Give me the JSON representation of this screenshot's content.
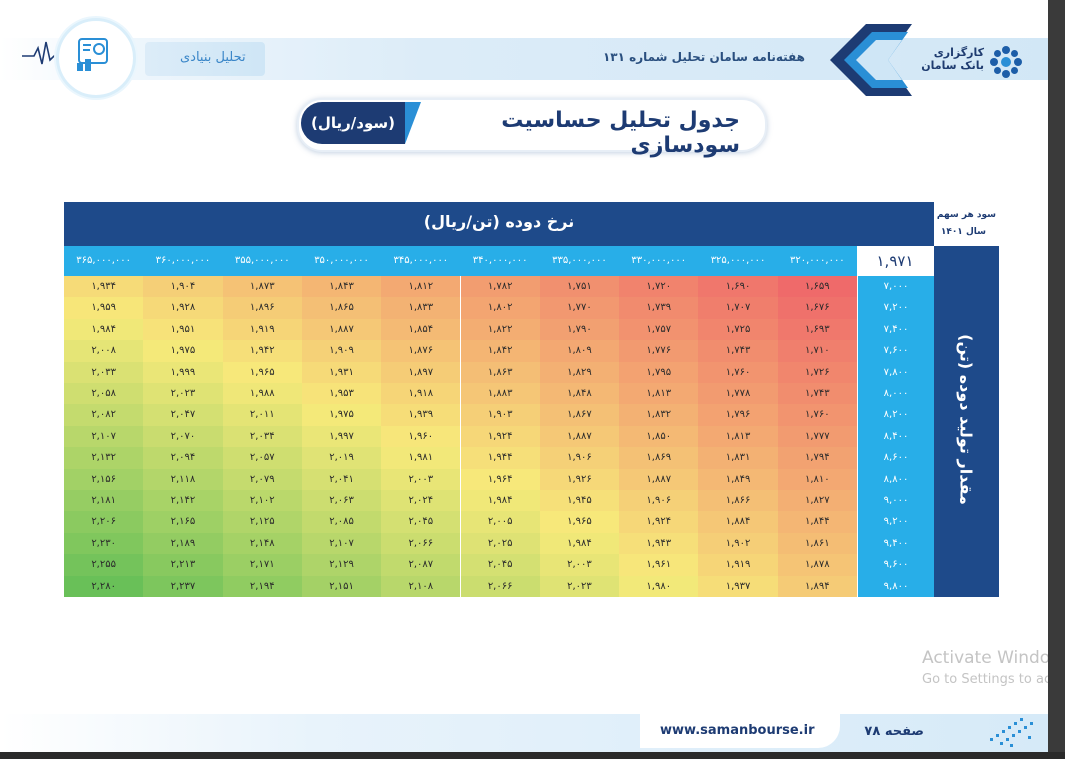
{
  "header": {
    "section_label": "تحلیل بنیادی",
    "weekly_title": "هفته‌نامه سامان تحلیل شماره ۱۳۱",
    "brand_line1": "کارگزاری",
    "brand_line2": "بانک سامان"
  },
  "title": {
    "main": "جدول تحلیل حساسیت سودسازی",
    "unit": "(سود/ریال)"
  },
  "table": {
    "corner_line1": "سود هر سهم",
    "corner_line2": "سال ۱۴۰۱",
    "column_header": "نرخ دوده (تن/ریال)",
    "row_header": "مقدار تولید دوده (تن)",
    "base_eps": "۱,۹۷۱",
    "prices": [
      "۳۲۰,۰۰۰,۰۰۰",
      "۳۲۵,۰۰۰,۰۰۰",
      "۳۳۰,۰۰۰,۰۰۰",
      "۳۳۵,۰۰۰,۰۰۰",
      "۳۴۰,۰۰۰,۰۰۰",
      "۳۴۵,۰۰۰,۰۰۰",
      "۳۵۰,۰۰۰,۰۰۰",
      "۳۵۵,۰۰۰,۰۰۰",
      "۳۶۰,۰۰۰,۰۰۰",
      "۳۶۵,۰۰۰,۰۰۰"
    ],
    "production": [
      "۷,۰۰۰",
      "۷,۲۰۰",
      "۷,۴۰۰",
      "۷,۶۰۰",
      "۷,۸۰۰",
      "۸,۰۰۰",
      "۸,۲۰۰",
      "۸,۴۰۰",
      "۸,۶۰۰",
      "۸,۸۰۰",
      "۹,۰۰۰",
      "۹,۲۰۰",
      "۹,۴۰۰",
      "۹,۶۰۰",
      "۹,۸۰۰"
    ],
    "rows": [
      [
        "۱,۶۵۹",
        "۱,۶۹۰",
        "۱,۷۲۰",
        "۱,۷۵۱",
        "۱,۷۸۲",
        "۱,۸۱۲",
        "۱,۸۴۳",
        "۱,۸۷۳",
        "۱,۹۰۴",
        "۱,۹۳۴"
      ],
      [
        "۱,۶۷۶",
        "۱,۷۰۷",
        "۱,۷۳۹",
        "۱,۷۷۰",
        "۱,۸۰۲",
        "۱,۸۳۳",
        "۱,۸۶۵",
        "۱,۸۹۶",
        "۱,۹۲۸",
        "۱,۹۵۹"
      ],
      [
        "۱,۶۹۳",
        "۱,۷۲۵",
        "۱,۷۵۷",
        "۱,۷۹۰",
        "۱,۸۲۲",
        "۱,۸۵۴",
        "۱,۸۸۷",
        "۱,۹۱۹",
        "۱,۹۵۱",
        "۱,۹۸۴"
      ],
      [
        "۱,۷۱۰",
        "۱,۷۴۳",
        "۱,۷۷۶",
        "۱,۸۰۹",
        "۱,۸۴۲",
        "۱,۸۷۶",
        "۱,۹۰۹",
        "۱,۹۴۲",
        "۱,۹۷۵",
        "۲,۰۰۸"
      ],
      [
        "۱,۷۲۶",
        "۱,۷۶۰",
        "۱,۷۹۵",
        "۱,۸۲۹",
        "۱,۸۶۳",
        "۱,۸۹۷",
        "۱,۹۳۱",
        "۱,۹۶۵",
        "۱,۹۹۹",
        "۲,۰۳۳"
      ],
      [
        "۱,۷۴۳",
        "۱,۷۷۸",
        "۱,۸۱۳",
        "۱,۸۴۸",
        "۱,۸۸۳",
        "۱,۹۱۸",
        "۱,۹۵۳",
        "۱,۹۸۸",
        "۲,۰۲۳",
        "۲,۰۵۸"
      ],
      [
        "۱,۷۶۰",
        "۱,۷۹۶",
        "۱,۸۳۲",
        "۱,۸۶۷",
        "۱,۹۰۳",
        "۱,۹۳۹",
        "۱,۹۷۵",
        "۲,۰۱۱",
        "۲,۰۴۷",
        "۲,۰۸۲"
      ],
      [
        "۱,۷۷۷",
        "۱,۸۱۳",
        "۱,۸۵۰",
        "۱,۸۸۷",
        "۱,۹۲۴",
        "۱,۹۶۰",
        "۱,۹۹۷",
        "۲,۰۳۴",
        "۲,۰۷۰",
        "۲,۱۰۷"
      ],
      [
        "۱,۷۹۴",
        "۱,۸۳۱",
        "۱,۸۶۹",
        "۱,۹۰۶",
        "۱,۹۴۴",
        "۱,۹۸۱",
        "۲,۰۱۹",
        "۲,۰۵۷",
        "۲,۰۹۴",
        "۲,۱۳۲"
      ],
      [
        "۱,۸۱۰",
        "۱,۸۴۹",
        "۱,۸۸۷",
        "۱,۹۲۶",
        "۱,۹۶۴",
        "۲,۰۰۳",
        "۲,۰۴۱",
        "۲,۰۷۹",
        "۲,۱۱۸",
        "۲,۱۵۶"
      ],
      [
        "۱,۸۲۷",
        "۱,۸۶۶",
        "۱,۹۰۶",
        "۱,۹۴۵",
        "۱,۹۸۴",
        "۲,۰۲۴",
        "۲,۰۶۳",
        "۲,۱۰۲",
        "۲,۱۴۲",
        "۲,۱۸۱"
      ],
      [
        "۱,۸۴۴",
        "۱,۸۸۴",
        "۱,۹۲۴",
        "۱,۹۶۵",
        "۲,۰۰۵",
        "۲,۰۴۵",
        "۲,۰۸۵",
        "۲,۱۲۵",
        "۲,۱۶۵",
        "۲,۲۰۶"
      ],
      [
        "۱,۸۶۱",
        "۱,۹۰۲",
        "۱,۹۴۳",
        "۱,۹۸۴",
        "۲,۰۲۵",
        "۲,۰۶۶",
        "۲,۱۰۷",
        "۲,۱۴۸",
        "۲,۱۸۹",
        "۲,۲۳۰"
      ],
      [
        "۱,۸۷۸",
        "۱,۹۱۹",
        "۱,۹۶۱",
        "۲,۰۰۳",
        "۲,۰۴۵",
        "۲,۰۸۷",
        "۲,۱۲۹",
        "۲,۱۷۱",
        "۲,۲۱۳",
        "۲,۲۵۵"
      ],
      [
        "۱,۸۹۴",
        "۱,۹۳۷",
        "۱,۹۸۰",
        "۲,۰۲۳",
        "۲,۰۶۶",
        "۲,۱۰۸",
        "۲,۱۵۱",
        "۲,۱۹۴",
        "۲,۲۳۷",
        "۲,۲۸۰"
      ]
    ],
    "values_numeric": [
      [
        1659,
        1690,
        1720,
        1751,
        1782,
        1812,
        1843,
        1873,
        1904,
        1934
      ],
      [
        1676,
        1707,
        1739,
        1770,
        1802,
        1833,
        1865,
        1896,
        1928,
        1959
      ],
      [
        1693,
        1725,
        1757,
        1790,
        1822,
        1854,
        1887,
        1919,
        1951,
        1984
      ],
      [
        1710,
        1743,
        1776,
        1809,
        1842,
        1876,
        1909,
        1942,
        1975,
        2008
      ],
      [
        1726,
        1760,
        1795,
        1829,
        1863,
        1897,
        1931,
        1965,
        1999,
        2033
      ],
      [
        1743,
        1778,
        1813,
        1848,
        1883,
        1918,
        1953,
        1988,
        2023,
        2058
      ],
      [
        1760,
        1796,
        1832,
        1867,
        1903,
        1939,
        1975,
        2011,
        2047,
        2082
      ],
      [
        1777,
        1813,
        1850,
        1887,
        1924,
        1960,
        1997,
        2034,
        2070,
        2107
      ],
      [
        1794,
        1831,
        1869,
        1906,
        1944,
        1981,
        2019,
        2057,
        2094,
        2132
      ],
      [
        1810,
        1849,
        1887,
        1926,
        1964,
        2003,
        2041,
        2079,
        2118,
        2156
      ],
      [
        1827,
        1866,
        1906,
        1945,
        1984,
        2024,
        2063,
        2102,
        2142,
        2181
      ],
      [
        1844,
        1884,
        1924,
        1965,
        2005,
        2045,
        2085,
        2125,
        2165,
        2206
      ],
      [
        1861,
        1902,
        1943,
        1984,
        2025,
        2066,
        2107,
        2148,
        2189,
        2230
      ],
      [
        1878,
        1919,
        1961,
        2003,
        2045,
        2087,
        2129,
        2171,
        2213,
        2255
      ],
      [
        1894,
        1937,
        1980,
        2023,
        2066,
        2108,
        2151,
        2194,
        2237,
        2280
      ]
    ]
  },
  "watermark": {
    "line1": "Activate Windows",
    "line2": "Go to Settings to activate Windows."
  },
  "footer": {
    "url": "www.samanbourse.ir",
    "page": "صفحه ۷۸"
  },
  "colors": {
    "navy": "#1e4a8a",
    "sky": "#28aee8",
    "heat_low": "#ef6a6a",
    "heat_mid": "#f7ea7a",
    "heat_high": "#69c058"
  }
}
